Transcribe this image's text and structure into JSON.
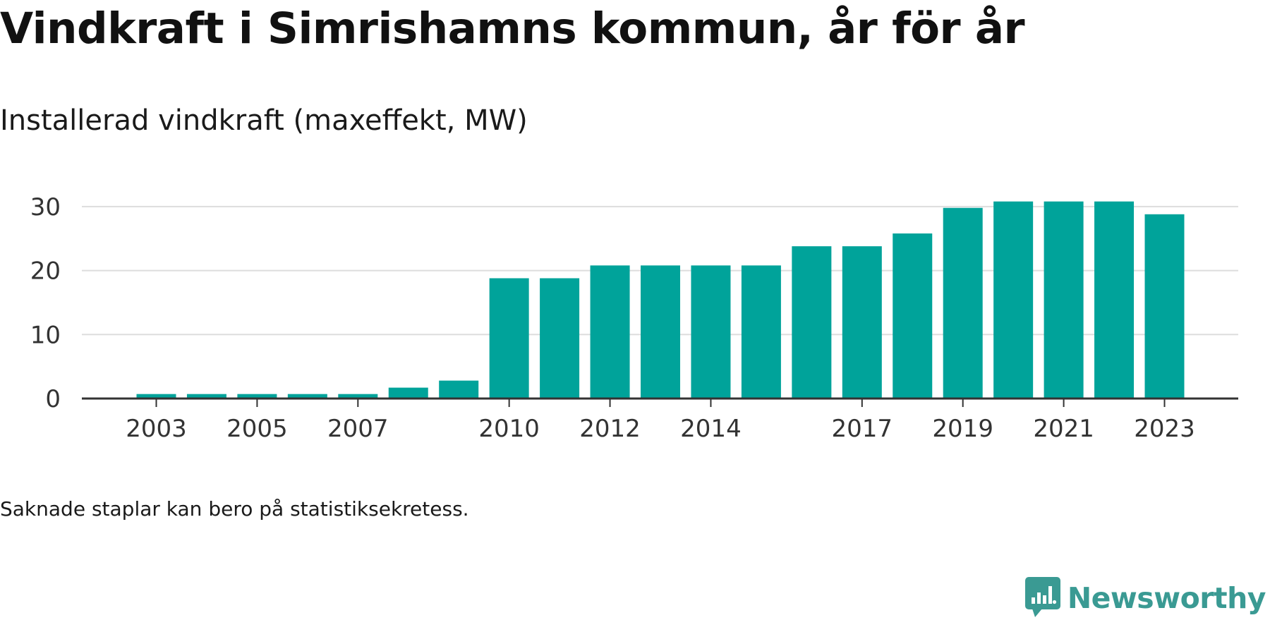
{
  "title": "Vindkraft i Simrishamns kommun, år för år",
  "subtitle": "Installerad vindkraft (maxeffekt, MW)",
  "note": "Saknade staplar kan bero på statistiksekretess.",
  "brand": {
    "name": "Newsworthy",
    "icon": "newsworthy-logo-icon",
    "color": "#3a9a93"
  },
  "chart_data": {
    "type": "bar",
    "categories": [
      "2003",
      "2004",
      "2005",
      "2006",
      "2007",
      "2008",
      "2009",
      "2010",
      "2011",
      "2012",
      "2013",
      "2014",
      "2015",
      "2016",
      "2017",
      "2018",
      "2019",
      "2020",
      "2021",
      "2022",
      "2023"
    ],
    "values": [
      0.7,
      0.7,
      0.7,
      0.7,
      0.7,
      1.7,
      2.8,
      18.8,
      18.8,
      20.8,
      20.8,
      20.8,
      20.8,
      23.8,
      23.8,
      25.8,
      29.8,
      30.8,
      30.8,
      30.8,
      28.8
    ],
    "x_tick_labels": [
      "2003",
      "2005",
      "2007",
      "2010",
      "2012",
      "2014",
      "2017",
      "2019",
      "2021",
      "2023"
    ],
    "y_ticks": [
      0,
      10,
      20,
      30
    ],
    "ylim": [
      0,
      32
    ],
    "xlabel": "",
    "ylabel": "",
    "grid": true,
    "legend": "none",
    "bar_color": "#00a39a",
    "grid_color": "#dddddd",
    "axis_color": "#333333"
  }
}
